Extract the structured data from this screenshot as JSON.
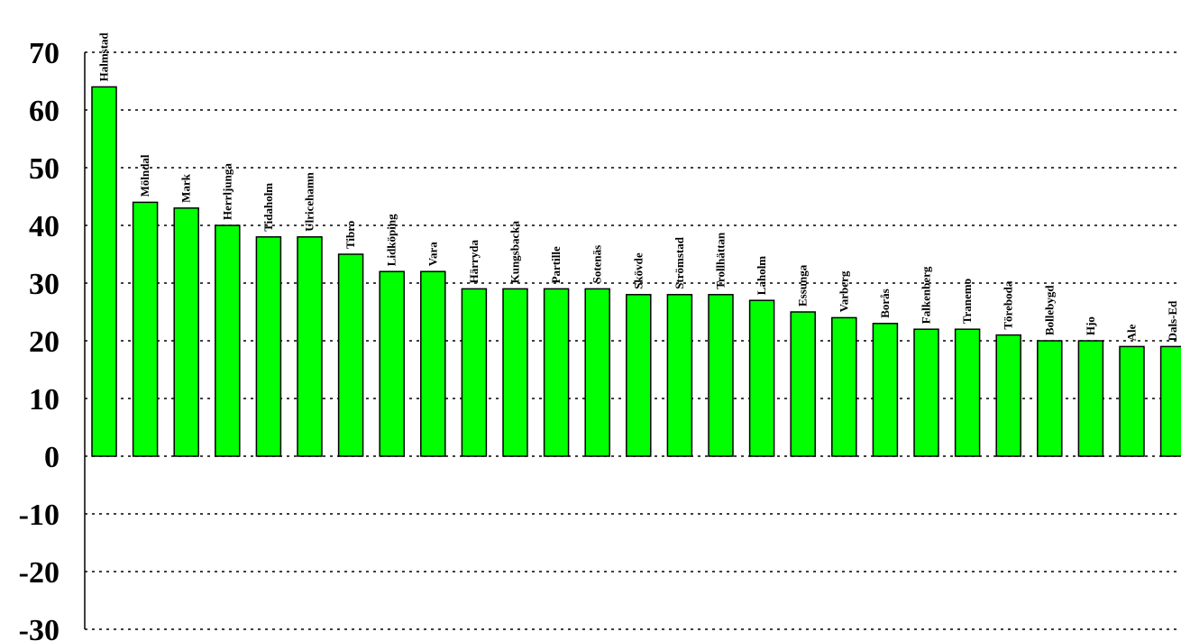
{
  "chart_data": {
    "type": "bar",
    "title": "",
    "xlabel": "",
    "ylabel": "",
    "ylim": [
      -30,
      70
    ],
    "yticks": [
      "70",
      "60",
      "50",
      "40",
      "30",
      "20",
      "10",
      "0",
      "-10",
      "-20",
      "-30"
    ],
    "grid": true,
    "bar_color": "#00ff00",
    "categories": [
      "Halmstad",
      "Mölndal",
      "Mark",
      "Herrljunga",
      "Tidaholm",
      "Ulricehamn",
      "Tibro",
      "Lidköping",
      "Vara",
      "Härryda",
      "Kungsbacka",
      "Partille",
      "Sotenäs",
      "Skövde",
      "Strömstad",
      "Trollhättan",
      "Laholm",
      "Essunga",
      "Varberg",
      "Borås",
      "Falkenberg",
      "Tranemo",
      "Töreboda",
      "Bollebygd",
      "Hjo",
      "Ale",
      "Dals-Ed"
    ],
    "values": [
      64,
      44,
      43,
      40,
      38,
      38,
      35,
      32,
      32,
      29,
      29,
      29,
      29,
      28,
      28,
      28,
      27,
      25,
      24,
      23,
      22,
      22,
      21,
      20,
      20,
      19,
      19
    ]
  }
}
